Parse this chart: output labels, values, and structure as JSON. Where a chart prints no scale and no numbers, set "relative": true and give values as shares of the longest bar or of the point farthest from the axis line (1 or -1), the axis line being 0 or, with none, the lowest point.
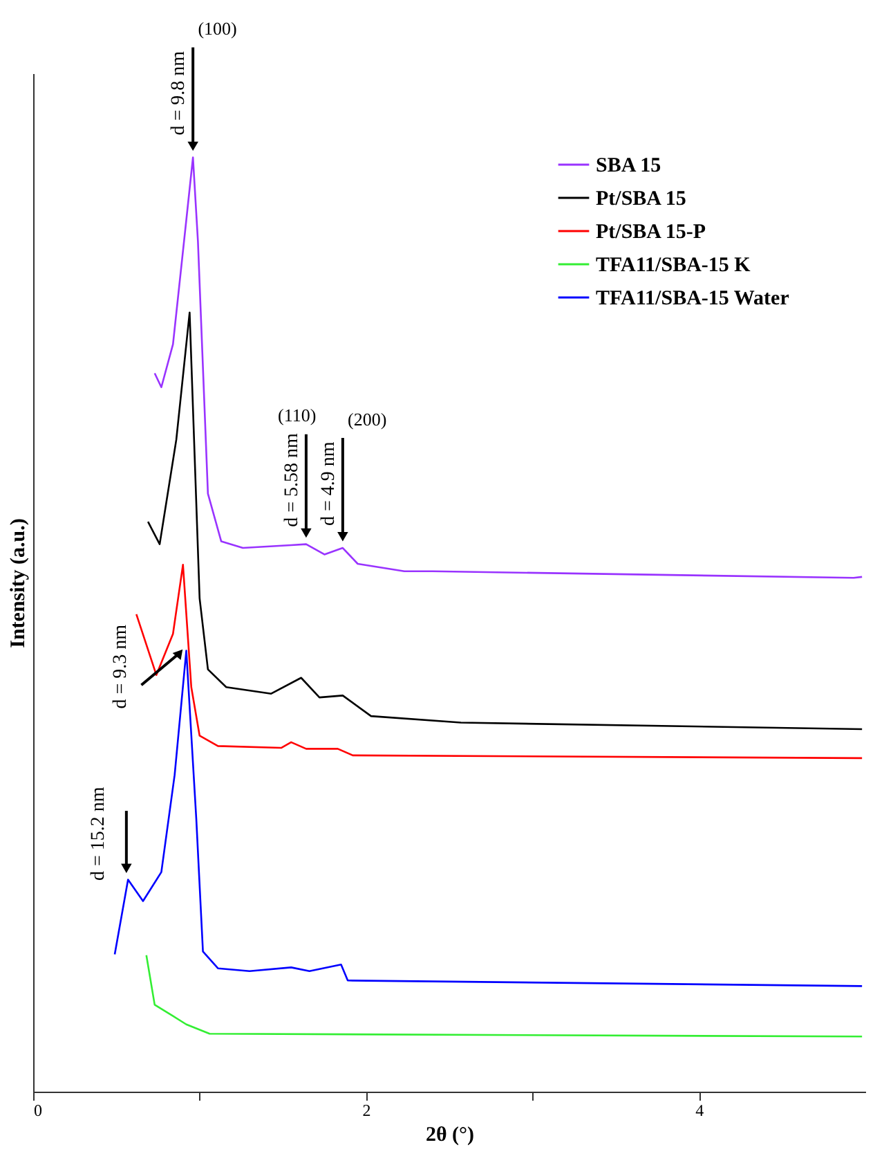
{
  "chart_data": {
    "type": "line",
    "xlabel": "2θ (°)",
    "ylabel": "Intensity (a.u.)",
    "relative": true,
    "xlim": [
      0,
      5
    ],
    "xticks": [
      0,
      {
        "value": 1,
        "label": null
      },
      2,
      {
        "value": 3,
        "label": null
      },
      4
    ],
    "legend": "top right",
    "grid": false,
    "line_style": "solid",
    "series": [
      {
        "name": "SBA 15",
        "color": "#9933ff",
        "x": [
          0.73,
          0.77,
          0.84,
          0.92,
          0.96,
          0.99,
          1.05,
          1.13,
          1.26,
          1.55,
          1.64,
          1.75,
          1.86,
          1.95,
          2.23,
          2.4,
          4.93,
          4.98
        ],
        "values": [
          0.769,
          0.754,
          0.8,
          0.933,
          1.0,
          0.91,
          0.64,
          0.589,
          0.582,
          0.585,
          0.586,
          0.575,
          0.582,
          0.565,
          0.557,
          0.557,
          0.55,
          0.551
        ]
      },
      {
        "name": "Pt/SBA 15",
        "color": "#000000",
        "x": [
          0.69,
          0.76,
          0.86,
          0.94,
          1.0,
          1.05,
          1.16,
          1.43,
          1.61,
          1.72,
          1.86,
          2.03,
          2.57,
          4.98
        ],
        "values": [
          0.61,
          0.586,
          0.698,
          0.834,
          0.528,
          0.452,
          0.433,
          0.426,
          0.443,
          0.422,
          0.424,
          0.402,
          0.395,
          0.388
        ]
      },
      {
        "name": "Pt/SBA 15-P",
        "color": "#ff0000",
        "x": [
          0.62,
          0.74,
          0.84,
          0.9,
          0.95,
          1.0,
          1.11,
          1.49,
          1.55,
          1.64,
          1.83,
          1.92,
          4.98
        ],
        "values": [
          0.511,
          0.446,
          0.49,
          0.564,
          0.433,
          0.381,
          0.37,
          0.368,
          0.374,
          0.367,
          0.367,
          0.36,
          0.357
        ]
      },
      {
        "name": "TFA11/SBA-15 K",
        "color": "#33ee33",
        "x": [
          0.68,
          0.73,
          0.84,
          0.92,
          1.06,
          4.98
        ],
        "values": [
          0.146,
          0.093,
          0.081,
          0.072,
          0.062,
          0.059
        ]
      },
      {
        "name": "TFA11/SBA-15 Water",
        "color": "#0000ff",
        "x": [
          0.49,
          0.57,
          0.66,
          0.77,
          0.85,
          0.92,
          0.98,
          1.02,
          1.11,
          1.3,
          1.55,
          1.66,
          1.85,
          1.89,
          2.4,
          4.98
        ],
        "values": [
          0.147,
          0.227,
          0.204,
          0.235,
          0.339,
          0.472,
          0.292,
          0.15,
          0.132,
          0.129,
          0.133,
          0.129,
          0.136,
          0.119,
          0.118,
          0.113
        ]
      }
    ],
    "annotations": [
      {
        "text": "d = 9.8 nm",
        "x": 0.96,
        "y": 1.0
      },
      {
        "text": "(100)",
        "x": 0.96,
        "y": 1.0
      },
      {
        "text": "d = 5.58 nm",
        "x": 1.64,
        "y": 0.586
      },
      {
        "text": "(110)",
        "x": 1.64,
        "y": 0.586
      },
      {
        "text": "d = 4.9 nm",
        "x": 1.86,
        "y": 0.582
      },
      {
        "text": "(200)",
        "x": 1.86,
        "y": 0.582
      },
      {
        "text": "d = 9.3 nm",
        "x": 0.92,
        "y": 0.472
      },
      {
        "text": "d = 15.2 nm",
        "x": 0.57,
        "y": 0.227
      }
    ]
  }
}
